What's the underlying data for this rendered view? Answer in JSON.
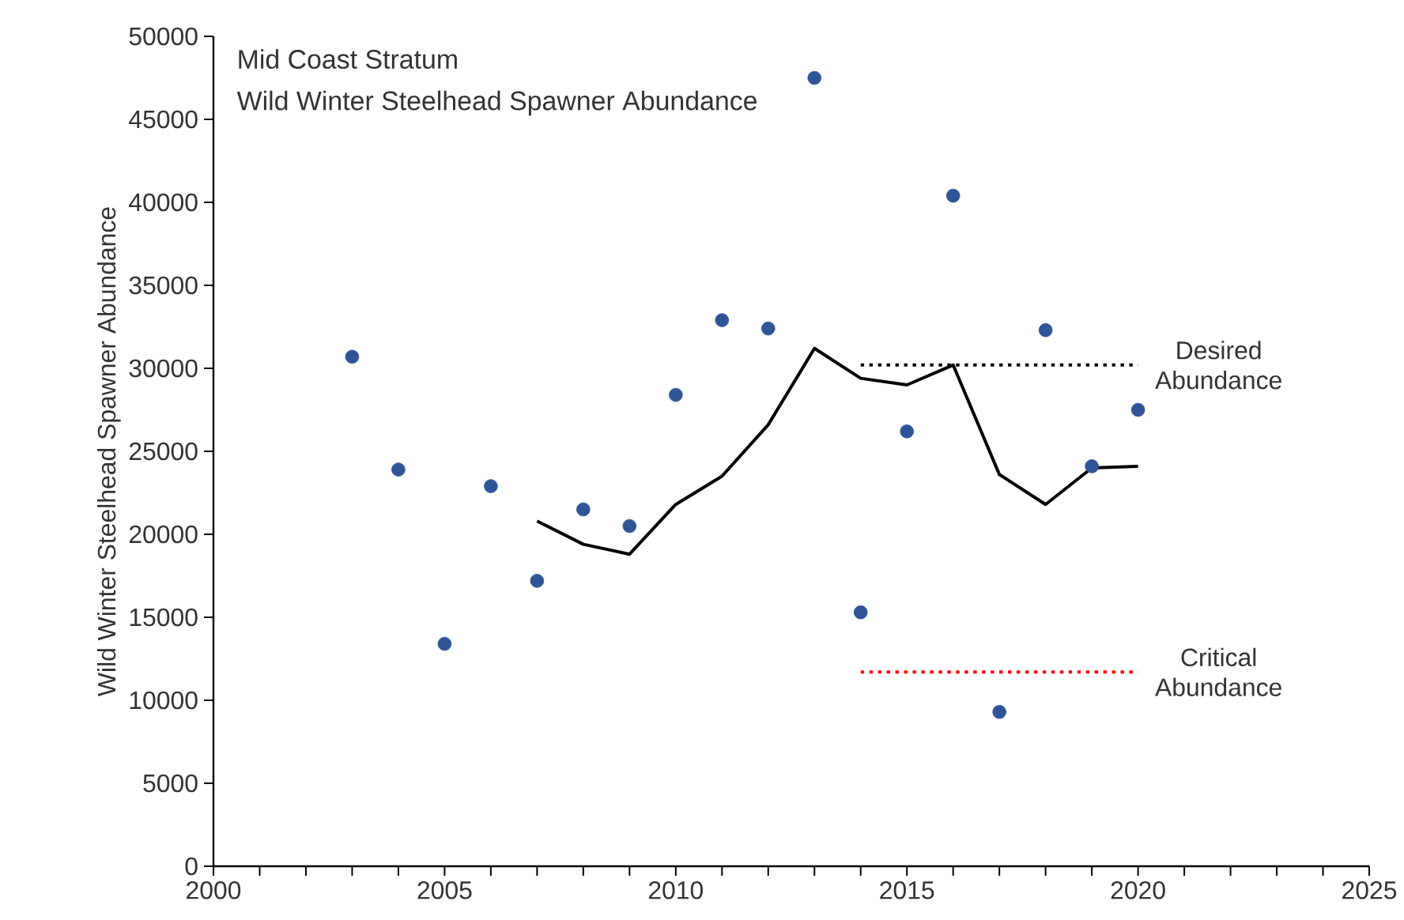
{
  "chart_data": {
    "type": "scatter",
    "title": "Mid Coast Stratum",
    "subtitle": "Wild Winter Steelhead Spawner Abundance",
    "ylabel": "Wild Winter Steelhead Spawner Abundance",
    "xlim": [
      2000,
      2025
    ],
    "xticks": [
      2000,
      2005,
      2010,
      2015,
      2020,
      2025
    ],
    "ylim": [
      0,
      50000
    ],
    "yticks": [
      0,
      5000,
      10000,
      15000,
      20000,
      25000,
      30000,
      35000,
      40000,
      45000,
      50000
    ],
    "series": [
      {
        "marker": "circle",
        "color": "#2f5597",
        "x": [
          2003,
          2004,
          2005,
          2006,
          2007,
          2008,
          2009,
          2010,
          2011,
          2012,
          2013,
          2014,
          2015,
          2016,
          2017,
          2018,
          2019,
          2020
        ],
        "values": [
          30700,
          23900,
          13400,
          22900,
          17200,
          21500,
          20500,
          28400,
          32900,
          32400,
          47500,
          15300,
          26200,
          40400,
          9300,
          32300,
          24100,
          27500
        ]
      },
      {
        "type": "line",
        "marker": "none",
        "line_style": "solid",
        "color": "#000000",
        "x": [
          2007,
          2008,
          2009,
          2010,
          2011,
          2012,
          2013,
          2014,
          2015,
          2016,
          2017,
          2018,
          2019,
          2020
        ],
        "values": [
          20800,
          19400,
          18800,
          21800,
          23500,
          26600,
          31200,
          29400,
          29000,
          30200,
          23600,
          21800,
          24000,
          24100
        ]
      },
      {
        "type": "line",
        "marker": "none",
        "line_style": "dotted",
        "name": "Desired Abundance",
        "color": "#000000",
        "x": [
          2014,
          2020
        ],
        "values": [
          30200,
          30200
        ]
      },
      {
        "type": "line",
        "marker": "none",
        "line_style": "dotted",
        "name": "Critical Abundance",
        "color": "#ff0000",
        "x": [
          2014,
          2020
        ],
        "values": [
          11700,
          11700
        ]
      }
    ]
  }
}
